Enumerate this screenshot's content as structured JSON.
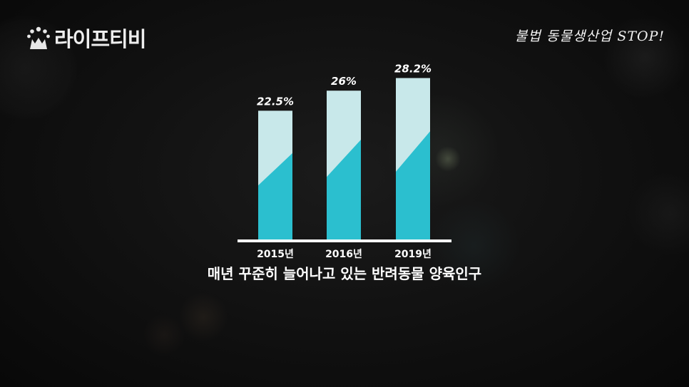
{
  "logo": {
    "text": "라이프티비",
    "icon": "cat-face-icon"
  },
  "caption": "불법 동물생산업 STOP!",
  "colors": {
    "bar_top": "#c8e8ea",
    "bar_bottom": "#2bbfcf",
    "baseline": "#ffffff",
    "text": "#ffffff"
  },
  "chart_data": {
    "type": "bar",
    "title": "매년 꾸준히 늘어나고 있는 반려동물 양육인구",
    "categories": [
      "2015년",
      "2016년",
      "2019년"
    ],
    "values": [
      22.5,
      26,
      28.2
    ],
    "value_labels": [
      "22.5%",
      "26%",
      "28.2%"
    ],
    "unit": "%",
    "xlabel": "",
    "ylabel": "",
    "ylim": [
      0,
      30
    ],
    "grid": false,
    "legend": "none"
  }
}
